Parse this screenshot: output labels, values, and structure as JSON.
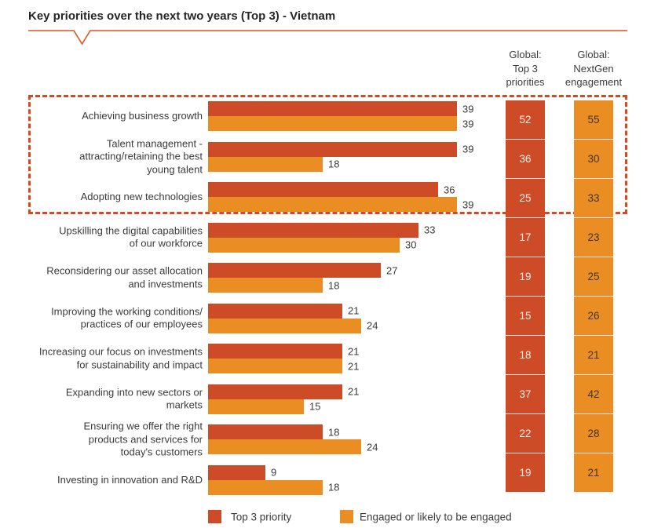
{
  "title": "Key priorities over the next two years (Top 3) - Vietnam",
  "columns": {
    "global_top3_header_lines": [
      "Global:",
      "Top 3",
      "priorities"
    ],
    "global_nextgen_header_lines": [
      "Global:",
      "NextGen",
      "engagement"
    ]
  },
  "legend": {
    "items": [
      {
        "label": "Top 3 priority",
        "color": "#ce4b28"
      },
      {
        "label": "Engaged or likely to be engaged",
        "color": "#ea8e24"
      }
    ]
  },
  "colors": {
    "top3_bar": "#ce4b28",
    "engaged_bar": "#ea8e24",
    "accent_line": "#e2511e",
    "highlight_border": "#d24a24",
    "global_top3_box_bg": "#ce4b28",
    "global_top3_box_text": "#fbefe7",
    "global_nextgen_box_bg": "#ea8e24",
    "global_nextgen_box_text": "#443420",
    "label_text": "#3b3b3b",
    "value_text": "#3a3a3a"
  },
  "chart_data": {
    "type": "bar",
    "orientation": "horizontal",
    "title": "Key priorities over the next two years (Top 3) - Vietnam",
    "series_names": [
      "Top 3 priority",
      "Engaged or likely to be engaged"
    ],
    "xlim": [
      0,
      39
    ],
    "grid": false,
    "legend_position": "bottom",
    "annotation": "dashed box highlights top 3 priorities including global comparison columns",
    "rows": [
      {
        "category": "Achieving business growth",
        "label_lines": [
          "Achieving business growth"
        ],
        "top3_priority": 39,
        "engaged": 39,
        "global_top3": 52,
        "global_nextgen": 55,
        "in_top3_highlight": true
      },
      {
        "category": "Talent management - attracting/retaining the best young talent",
        "label_lines": [
          "Talent management -",
          "attracting/retaining the best",
          "young talent"
        ],
        "top3_priority": 39,
        "engaged": 18,
        "global_top3": 36,
        "global_nextgen": 30,
        "in_top3_highlight": true
      },
      {
        "category": "Adopting new technologies",
        "label_lines": [
          "Adopting new technologies"
        ],
        "top3_priority": 36,
        "engaged": 39,
        "global_top3": 25,
        "global_nextgen": 33,
        "in_top3_highlight": true
      },
      {
        "category": "Upskilling the digital capabilities of our workforce",
        "label_lines": [
          "Upskilling the digital capabilities",
          "of our workforce"
        ],
        "top3_priority": 33,
        "engaged": 30,
        "global_top3": 17,
        "global_nextgen": 23,
        "in_top3_highlight": false
      },
      {
        "category": "Reconsidering our asset allocation and investments",
        "label_lines": [
          "Reconsidering our asset allocation",
          "and investments"
        ],
        "top3_priority": 27,
        "engaged": 18,
        "global_top3": 19,
        "global_nextgen": 25,
        "in_top3_highlight": false
      },
      {
        "category": "Improving the working conditions/practices of our employees",
        "label_lines": [
          "Improving the working conditions/",
          "practices of our employees"
        ],
        "top3_priority": 21,
        "engaged": 24,
        "global_top3": 15,
        "global_nextgen": 26,
        "in_top3_highlight": false
      },
      {
        "category": "Increasing our focus on investments for sustainability and impact",
        "label_lines": [
          "Increasing our focus on investments",
          "for sustainability and impact"
        ],
        "top3_priority": 21,
        "engaged": 21,
        "global_top3": 18,
        "global_nextgen": 21,
        "in_top3_highlight": false
      },
      {
        "category": "Expanding into new sectors or markets",
        "label_lines": [
          "Expanding into new sectors or",
          "markets"
        ],
        "top3_priority": 21,
        "engaged": 15,
        "global_top3": 37,
        "global_nextgen": 42,
        "in_top3_highlight": false
      },
      {
        "category": "Ensuring we offer the right products and services for today's customers",
        "label_lines": [
          "Ensuring we offer the right",
          "products and services for",
          "today's customers"
        ],
        "top3_priority": 18,
        "engaged": 24,
        "global_top3": 22,
        "global_nextgen": 28,
        "in_top3_highlight": false
      },
      {
        "category": "Investing in innovation and R&D",
        "label_lines": [
          "Investing in innovation and R&D"
        ],
        "top3_priority": 9,
        "engaged": 18,
        "global_top3": 19,
        "global_nextgen": 21,
        "in_top3_highlight": false
      }
    ]
  }
}
